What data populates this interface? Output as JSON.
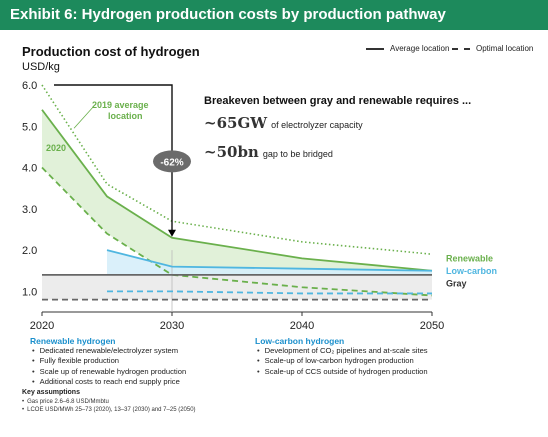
{
  "header": {
    "title": "Exhibit 6: Hydrogen production costs by production pathway"
  },
  "legend": {
    "average": "Average location",
    "optimal": "Optimal location"
  },
  "annotation": {
    "heading": "Breakeven between gray and renewable requires ...",
    "gw_value": "~65GW",
    "gw_text": "of electrolyzer capacity",
    "bn_value": "~50bn",
    "bn_text": "gap to be bridged",
    "reduction": "-62%",
    "label_2019": [
      "2019 average",
      "location"
    ],
    "label_2020": "2020"
  },
  "chart_data": {
    "type": "line",
    "title": "Production cost of hydrogen",
    "ylabel": "USD/kg",
    "x": [
      2020,
      2025,
      2030,
      2040,
      2050
    ],
    "xticks": [
      "2020",
      "2030",
      "2040",
      "2050"
    ],
    "yticks": [
      "1.0",
      "2.0",
      "3.0",
      "4.0",
      "5.0",
      "6.0"
    ],
    "xlim": [
      2020,
      2050
    ],
    "ylim": [
      0.5,
      6.0
    ],
    "series": [
      {
        "name": "Renewable",
        "style": "average",
        "color": "#6ab04c",
        "values": [
          5.4,
          3.3,
          2.3,
          1.8,
          1.5
        ]
      },
      {
        "name": "Renewable",
        "style": "optimal",
        "color": "#6ab04c",
        "values": [
          4.0,
          2.4,
          1.4,
          1.1,
          0.9
        ]
      },
      {
        "name": "2019 average location",
        "style": "dotted",
        "color": "#6ab04c",
        "values": [
          6.0,
          3.6,
          2.7,
          2.2,
          1.9
        ]
      },
      {
        "name": "Low-carbon",
        "style": "average",
        "color": "#4fb6e0",
        "x": [
          2025,
          2030,
          2040,
          2050
        ],
        "values": [
          2.0,
          1.6,
          1.55,
          1.5
        ]
      },
      {
        "name": "Low-carbon",
        "style": "optimal",
        "color": "#4fb6e0",
        "x": [
          2025,
          2030,
          2040,
          2050
        ],
        "values": [
          1.0,
          1.0,
          0.95,
          0.95
        ]
      },
      {
        "name": "Gray",
        "style": "average",
        "color": "#666666",
        "values": [
          1.4,
          1.4,
          1.4,
          1.4,
          1.4
        ]
      },
      {
        "name": "Gray",
        "style": "optimal",
        "color": "#666666",
        "values": [
          0.8,
          0.8,
          0.8,
          0.8,
          0.8
        ]
      }
    ],
    "series_labels": {
      "renewable": "Renewable",
      "low_carbon": "Low-carbon",
      "gray": "Gray"
    },
    "colors": {
      "renewable": "#6ab04c",
      "low_carbon": "#4fb6e0",
      "gray": "#666666",
      "header": "#1d8a5c"
    }
  },
  "renewable_section": {
    "title": "Renewable hydrogen",
    "items": [
      "Dedicated renewable/electrolyzer system",
      "Fully flexible production",
      "Scale up of renewable hydrogen production",
      "Additional costs to reach end supply price"
    ]
  },
  "lowcarbon_section": {
    "title": "Low-carbon hydrogen",
    "items": [
      "Development of CO₂ pipelines and at-scale sites",
      "Scale-up of low-carbon hydrogen production",
      "Scale-up of CCS outside of hydrogen production"
    ]
  },
  "assumptions": {
    "title": "Key assumptions",
    "items": [
      "Gas price 2.6–6.8 USD/Mmbtu",
      "LCOE USD/MWh 25–73 (2020), 13–37 (2030) and 7–25 (2050)"
    ]
  }
}
